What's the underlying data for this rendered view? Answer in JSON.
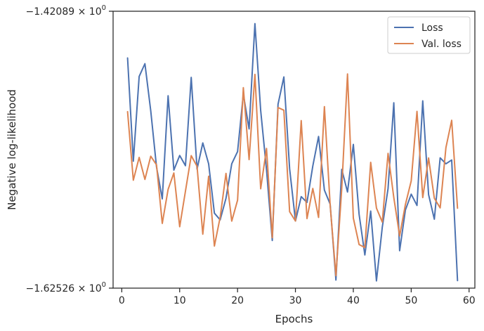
{
  "chart_data": {
    "type": "line",
    "xlabel": "Epochs",
    "ylabel": "Negative log-likelihood",
    "xlim": [
      -1.5,
      61.0
    ],
    "ylim": [
      -1.62526,
      -1.42089
    ],
    "y_scale": "symlog-style (labels in scientific notation)",
    "grid": false,
    "legend_position": "top-right",
    "x_ticks": [
      0,
      10,
      20,
      30,
      40,
      50,
      60
    ],
    "y_ticks": [
      {
        "value": -1.42089,
        "mantissa": "−1.42089",
        "base": "10",
        "exp": "0"
      },
      {
        "value": -1.62526,
        "mantissa": "−1.62526",
        "base": "10",
        "exp": "0"
      }
    ],
    "x": [
      1,
      2,
      3,
      4,
      5,
      6,
      7,
      8,
      9,
      10,
      11,
      12,
      13,
      14,
      15,
      16,
      17,
      18,
      19,
      20,
      21,
      22,
      23,
      24,
      25,
      26,
      27,
      28,
      29,
      30,
      31,
      32,
      33,
      34,
      35,
      36,
      37,
      38,
      39,
      40,
      41,
      42,
      43,
      44,
      45,
      46,
      47,
      48,
      49,
      50,
      51,
      52,
      53,
      54,
      55,
      56,
      57,
      58
    ],
    "series": [
      {
        "name": "Loss",
        "color": "#4c72b0",
        "values": [
          -1.4554,
          -1.5316,
          -1.469,
          -1.4596,
          -1.4944,
          -1.5358,
          -1.5594,
          -1.4833,
          -1.5381,
          -1.5274,
          -1.5349,
          -1.4697,
          -1.5374,
          -1.5181,
          -1.5335,
          -1.5699,
          -1.5749,
          -1.5589,
          -1.5335,
          -1.5245,
          -1.4821,
          -1.5077,
          -1.43,
          -1.4942,
          -1.5379,
          -1.5901,
          -1.4895,
          -1.4694,
          -1.5372,
          -1.5757,
          -1.5577,
          -1.562,
          -1.5351,
          -1.5133,
          -1.5529,
          -1.5633,
          -1.6193,
          -1.5376,
          -1.5543,
          -1.5192,
          -1.5708,
          -1.6008,
          -1.5684,
          -1.6199,
          -1.5803,
          -1.5518,
          -1.4885,
          -1.5976,
          -1.5676,
          -1.5559,
          -1.5642,
          -1.487,
          -1.5562,
          -1.5744,
          -1.5291,
          -1.5335,
          -1.5307,
          -1.6197
        ]
      },
      {
        "name": "Val. loss",
        "color": "#dd8452",
        "values": [
          -1.495,
          -1.5456,
          -1.5288,
          -1.545,
          -1.5279,
          -1.5343,
          -1.5775,
          -1.5524,
          -1.5403,
          -1.5799,
          -1.5537,
          -1.5275,
          -1.5353,
          -1.5854,
          -1.5427,
          -1.5942,
          -1.573,
          -1.5406,
          -1.5758,
          -1.5603,
          -1.4773,
          -1.5304,
          -1.4675,
          -1.5519,
          -1.5222,
          -1.588,
          -1.492,
          -1.4939,
          -1.5688,
          -1.5757,
          -1.5016,
          -1.5739,
          -1.5517,
          -1.5731,
          -1.4913,
          -1.564,
          -1.6161,
          -1.5517,
          -1.4672,
          -1.5736,
          -1.5931,
          -1.5953,
          -1.5324,
          -1.5662,
          -1.5765,
          -1.5258,
          -1.5584,
          -1.5867,
          -1.5636,
          -1.5461,
          -1.4948,
          -1.5584,
          -1.5292,
          -1.5589,
          -1.566,
          -1.5215,
          -1.5014,
          -1.5663
        ]
      }
    ]
  }
}
